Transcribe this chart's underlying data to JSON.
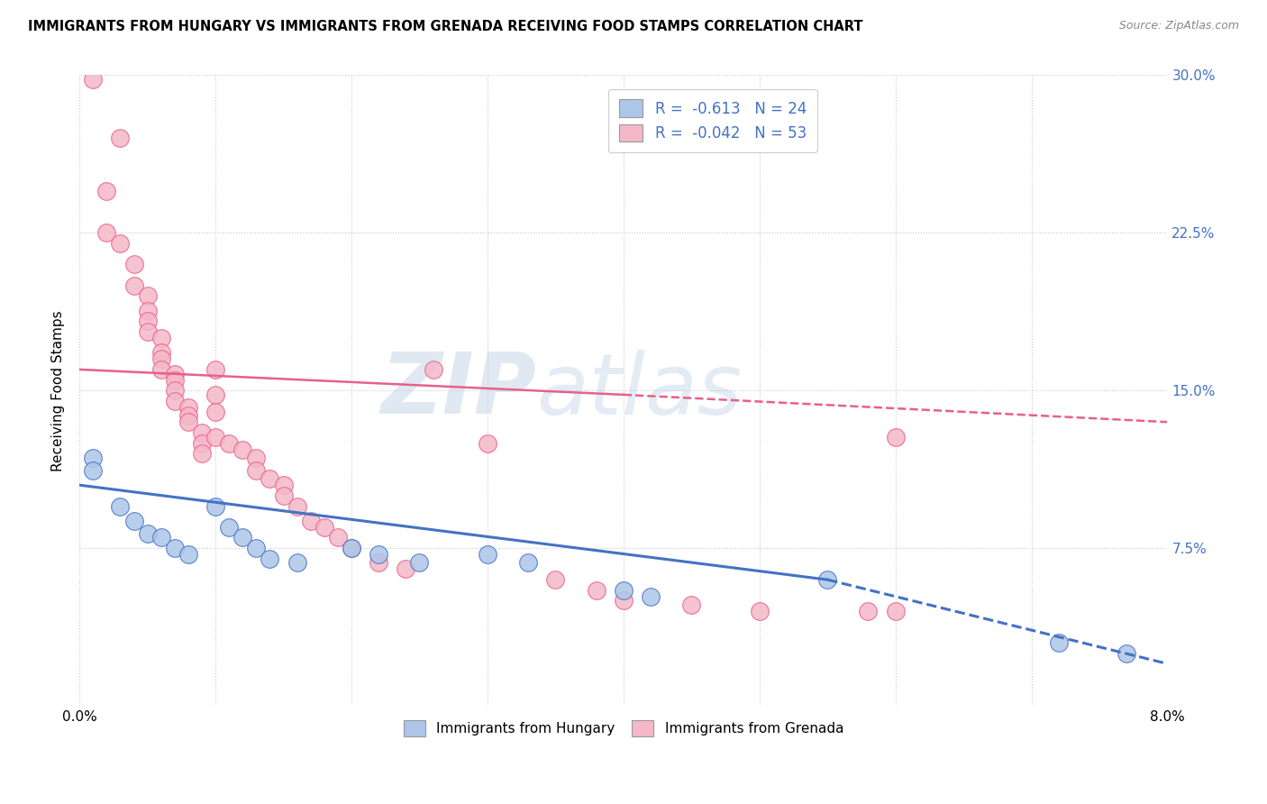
{
  "title": "IMMIGRANTS FROM HUNGARY VS IMMIGRANTS FROM GRENADA RECEIVING FOOD STAMPS CORRELATION CHART",
  "source": "Source: ZipAtlas.com",
  "ylabel": "Receiving Food Stamps",
  "x_min": 0.0,
  "x_max": 0.08,
  "y_min": 0.0,
  "y_max": 0.3,
  "x_ticks": [
    0.0,
    0.01,
    0.02,
    0.03,
    0.04,
    0.05,
    0.06,
    0.07,
    0.08
  ],
  "y_ticks": [
    0.0,
    0.075,
    0.15,
    0.225,
    0.3
  ],
  "y_tick_labels_right": [
    "",
    "7.5%",
    "15.0%",
    "22.5%",
    "30.0%"
  ],
  "background_color": "#ffffff",
  "grid_color": "#c8c8c8",
  "watermark_zip": "ZIP",
  "watermark_atlas": "atlas",
  "legend_r_hungary": "-0.613",
  "legend_n_hungary": "24",
  "legend_r_grenada": "-0.042",
  "legend_n_grenada": "53",
  "hungary_fill": "#adc6e8",
  "grenada_fill": "#f4b8c8",
  "hungary_edge": "#4472c4",
  "grenada_edge": "#e8608a",
  "label_color": "#4472c4",
  "hungary_scatter": [
    [
      0.001,
      0.118
    ],
    [
      0.001,
      0.112
    ],
    [
      0.003,
      0.095
    ],
    [
      0.004,
      0.088
    ],
    [
      0.005,
      0.082
    ],
    [
      0.006,
      0.08
    ],
    [
      0.007,
      0.075
    ],
    [
      0.008,
      0.072
    ],
    [
      0.01,
      0.095
    ],
    [
      0.011,
      0.085
    ],
    [
      0.012,
      0.08
    ],
    [
      0.013,
      0.075
    ],
    [
      0.014,
      0.07
    ],
    [
      0.016,
      0.068
    ],
    [
      0.02,
      0.075
    ],
    [
      0.022,
      0.072
    ],
    [
      0.025,
      0.068
    ],
    [
      0.03,
      0.072
    ],
    [
      0.033,
      0.068
    ],
    [
      0.04,
      0.055
    ],
    [
      0.042,
      0.052
    ],
    [
      0.055,
      0.06
    ],
    [
      0.072,
      0.03
    ],
    [
      0.077,
      0.025
    ]
  ],
  "grenada_scatter": [
    [
      0.001,
      0.298
    ],
    [
      0.002,
      0.245
    ],
    [
      0.002,
      0.225
    ],
    [
      0.003,
      0.27
    ],
    [
      0.003,
      0.22
    ],
    [
      0.004,
      0.21
    ],
    [
      0.004,
      0.2
    ],
    [
      0.005,
      0.195
    ],
    [
      0.005,
      0.188
    ],
    [
      0.005,
      0.183
    ],
    [
      0.005,
      0.178
    ],
    [
      0.006,
      0.175
    ],
    [
      0.006,
      0.168
    ],
    [
      0.006,
      0.165
    ],
    [
      0.006,
      0.16
    ],
    [
      0.007,
      0.158
    ],
    [
      0.007,
      0.155
    ],
    [
      0.007,
      0.15
    ],
    [
      0.007,
      0.145
    ],
    [
      0.008,
      0.142
    ],
    [
      0.008,
      0.138
    ],
    [
      0.008,
      0.135
    ],
    [
      0.009,
      0.13
    ],
    [
      0.009,
      0.125
    ],
    [
      0.009,
      0.12
    ],
    [
      0.01,
      0.16
    ],
    [
      0.01,
      0.148
    ],
    [
      0.01,
      0.14
    ],
    [
      0.01,
      0.128
    ],
    [
      0.011,
      0.125
    ],
    [
      0.012,
      0.122
    ],
    [
      0.013,
      0.118
    ],
    [
      0.013,
      0.112
    ],
    [
      0.014,
      0.108
    ],
    [
      0.015,
      0.105
    ],
    [
      0.015,
      0.1
    ],
    [
      0.016,
      0.095
    ],
    [
      0.017,
      0.088
    ],
    [
      0.018,
      0.085
    ],
    [
      0.019,
      0.08
    ],
    [
      0.02,
      0.075
    ],
    [
      0.022,
      0.068
    ],
    [
      0.024,
      0.065
    ],
    [
      0.026,
      0.16
    ],
    [
      0.03,
      0.125
    ],
    [
      0.035,
      0.06
    ],
    [
      0.038,
      0.055
    ],
    [
      0.04,
      0.05
    ],
    [
      0.045,
      0.048
    ],
    [
      0.05,
      0.045
    ],
    [
      0.058,
      0.045
    ],
    [
      0.06,
      0.128
    ],
    [
      0.06,
      0.045
    ]
  ],
  "hungary_trendline_solid": [
    [
      0.0,
      0.105
    ],
    [
      0.055,
      0.06
    ]
  ],
  "hungary_trendline_dashed": [
    [
      0.055,
      0.06
    ],
    [
      0.08,
      0.02
    ]
  ],
  "grenada_trendline_solid": [
    [
      0.0,
      0.16
    ],
    [
      0.04,
      0.148
    ]
  ],
  "grenada_trendline_dashed": [
    [
      0.04,
      0.148
    ],
    [
      0.08,
      0.135
    ]
  ]
}
